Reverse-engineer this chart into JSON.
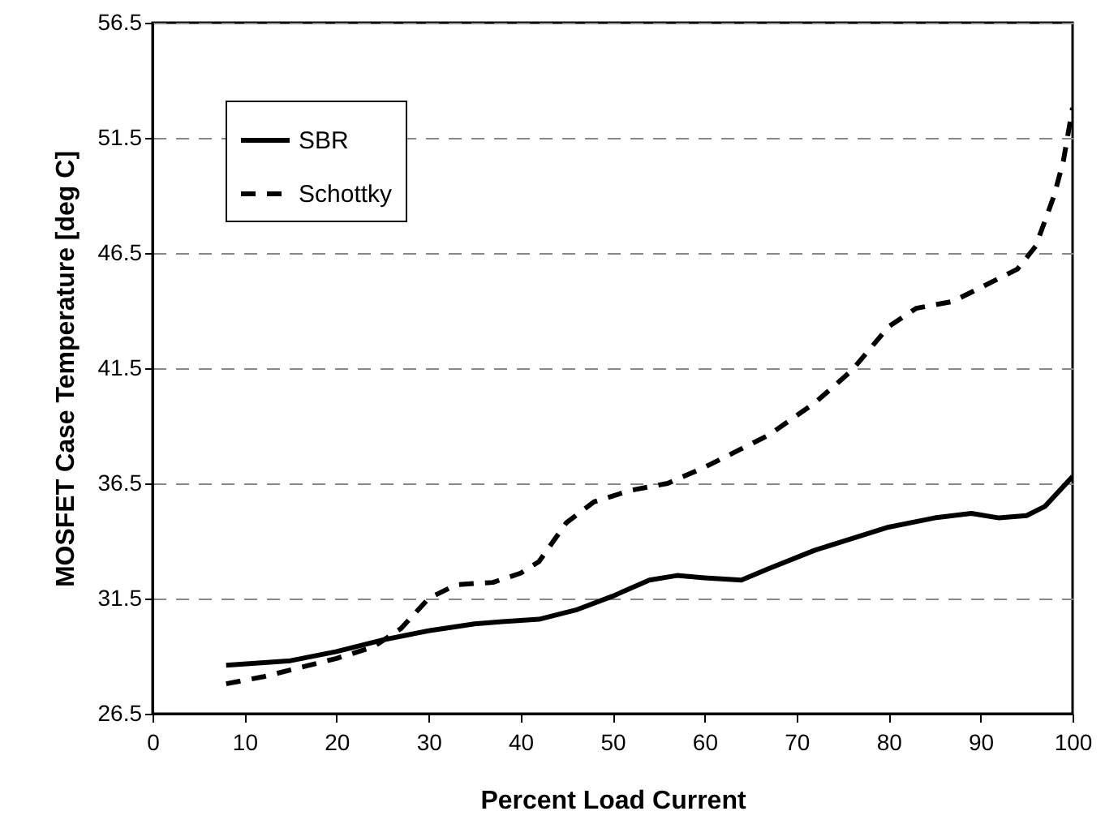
{
  "chart_data": {
    "type": "line",
    "xlabel": "Percent Load Current",
    "ylabel": "MOSFET Case Temperature [deg C]",
    "xlim": [
      0,
      100
    ],
    "xticks": [
      0,
      10,
      20,
      30,
      40,
      50,
      60,
      70,
      80,
      90,
      100
    ],
    "ylim": [
      26.5,
      56.5
    ],
    "yticks": [
      26.5,
      31.5,
      36.5,
      41.5,
      46.5,
      51.5,
      56.5
    ],
    "grid": "y",
    "legend": "top left",
    "series": [
      {
        "name": "SBR",
        "color": "#000000",
        "line_style": "solid",
        "x": [
          8,
          15,
          20,
          25,
          30,
          35,
          38,
          42,
          46,
          50,
          54,
          57,
          60,
          64,
          67,
          72,
          76,
          80,
          85,
          89,
          92,
          95,
          97,
          100
        ],
        "values": [
          28.6,
          28.8,
          29.2,
          29.7,
          30.1,
          30.4,
          30.5,
          30.6,
          31.0,
          31.6,
          32.3,
          32.5,
          32.4,
          32.3,
          32.8,
          33.6,
          34.1,
          34.6,
          35.0,
          35.2,
          35.0,
          35.1,
          35.5,
          36.8
        ]
      },
      {
        "name": "Schottky",
        "color": "#000000",
        "line_style": "dashed",
        "x": [
          8,
          12,
          16,
          20,
          24,
          27,
          30,
          33,
          37,
          40,
          42,
          45,
          48,
          52,
          56,
          60,
          64,
          67,
          72,
          76,
          80,
          83,
          87,
          90,
          94,
          96,
          98,
          99,
          100
        ],
        "values": [
          27.8,
          28.1,
          28.5,
          28.9,
          29.4,
          30.2,
          31.5,
          32.1,
          32.2,
          32.6,
          33.1,
          34.8,
          35.7,
          36.2,
          36.5,
          37.2,
          38.0,
          38.6,
          40.0,
          41.4,
          43.3,
          44.1,
          44.4,
          45.0,
          45.8,
          46.8,
          49.0,
          50.5,
          52.8
        ]
      }
    ]
  }
}
